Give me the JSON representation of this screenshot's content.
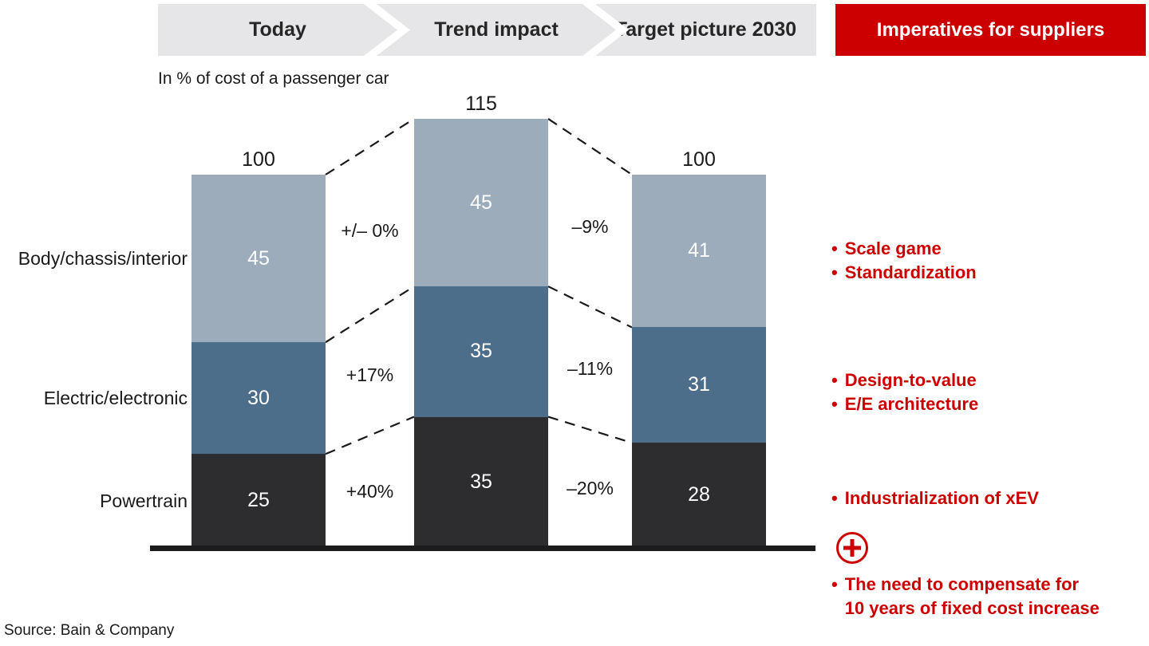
{
  "header": {
    "steps": [
      "Today",
      "Trend impact",
      "Target picture 2030"
    ]
  },
  "imperatives": {
    "title": "Imperatives for suppliers",
    "bullet_char": "•",
    "groups": [
      {
        "items": [
          {
            "lines": [
              "Scale game"
            ]
          },
          {
            "lines": [
              "Standardization"
            ]
          }
        ]
      },
      {
        "items": [
          {
            "lines": [
              "Design-to-value"
            ]
          },
          {
            "lines": [
              "E/E architecture"
            ]
          }
        ]
      },
      {
        "items": [
          {
            "lines": [
              "Industrialization of xEV"
            ]
          }
        ]
      },
      {
        "items": [
          {
            "lines": [
              "The need to compensate for",
              "10 years of fixed cost increase"
            ]
          }
        ]
      }
    ]
  },
  "subtitle": "In % of cost of a passenger car",
  "source": "Source: Bain & Company",
  "colors": {
    "accent_red": "#CC0000",
    "banner_gray": "#E6E5E7",
    "axis_black": "#1C1C1C",
    "value_label_white": "#FFFFFF"
  },
  "chart_data": {
    "type": "bar",
    "subtype": "stacked-columns-with-transitions",
    "title": "",
    "ylabel": "In % of cost of a passenger car",
    "ylim": [
      0,
      115
    ],
    "grid": false,
    "legend_position": "left-category-labels",
    "value_labels": "inside-segments",
    "totals_position": "above-bars",
    "categories": [
      "Today",
      "Trend impact",
      "Target picture 2030"
    ],
    "series": [
      {
        "name": "Body/chassis/interior",
        "values": [
          45,
          45,
          41
        ],
        "color": "#9CACBB"
      },
      {
        "name": "Electric/electronic",
        "values": [
          30,
          35,
          31
        ],
        "color": "#4D6E8B"
      },
      {
        "name": "Powertrain",
        "values": [
          25,
          35,
          28
        ],
        "color": "#2D2D2F"
      }
    ],
    "totals": [
      100,
      115,
      100
    ],
    "transitions": [
      {
        "between": [
          "Today",
          "Trend impact"
        ],
        "labels": [
          "+/– 0%",
          "+17%",
          "+40%"
        ]
      },
      {
        "between": [
          "Trend impact",
          "Target picture 2030"
        ],
        "labels": [
          "–9%",
          "–11%",
          "–20%"
        ]
      }
    ]
  }
}
